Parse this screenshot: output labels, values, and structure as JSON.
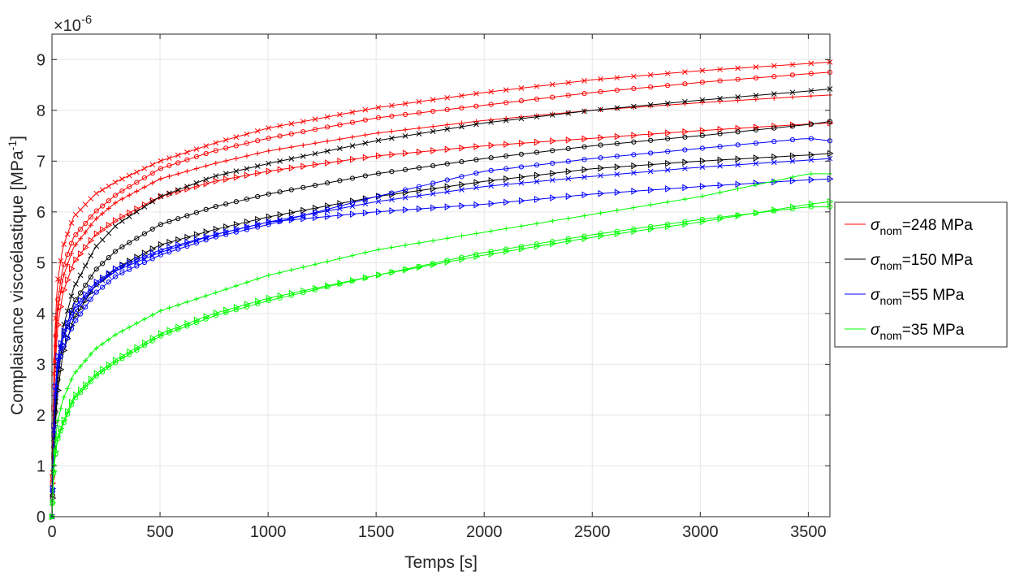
{
  "chart_data": {
    "type": "line",
    "title": "",
    "xlabel": "Temps [s]",
    "ylabel": "Complaisance viscoélastique [MPa",
    "ylabel_exponent": "-1",
    "ylabel_suffix": "]",
    "y_exponent_label": "×10",
    "y_exponent_power": "-6",
    "xlim": [
      0,
      3600
    ],
    "ylim": [
      0,
      9.5
    ],
    "x_ticks": [
      0,
      500,
      1000,
      1500,
      2000,
      2500,
      3000,
      3500
    ],
    "x_tick_labels": [
      "0",
      "500",
      "1000",
      "1500",
      "2000",
      "2500",
      "3000",
      "3500"
    ],
    "y_ticks": [
      0,
      1,
      2,
      3,
      4,
      5,
      6,
      7,
      8,
      9
    ],
    "y_tick_labels": [
      "0",
      "1",
      "2",
      "3",
      "4",
      "5",
      "6",
      "7",
      "8",
      "9"
    ],
    "grid": true,
    "legend_position": "outside-right",
    "legend": [
      {
        "symbol": "σ",
        "subscript": "nom",
        "suffix": "=248 MPa",
        "color": "#ff0000"
      },
      {
        "symbol": "σ",
        "subscript": "nom",
        "suffix": "=150 MPa",
        "color": "#000000"
      },
      {
        "symbol": "σ",
        "subscript": "nom",
        "suffix": "=55 MPa",
        "color": "#0000ff"
      },
      {
        "symbol": "σ",
        "subscript": "nom",
        "suffix": "=35 MPa",
        "color": "#00ff00"
      }
    ],
    "x": [
      0,
      10,
      25,
      50,
      100,
      200,
      300,
      500,
      750,
      1000,
      1500,
      2000,
      2500,
      3000,
      3500,
      3600
    ],
    "series": [
      {
        "group": "248 MPa",
        "color": "#ff0000",
        "marker": "x",
        "values": [
          0,
          3.3,
          4.6,
          5.3,
          5.9,
          6.35,
          6.6,
          7.0,
          7.35,
          7.65,
          8.05,
          8.35,
          8.6,
          8.78,
          8.92,
          8.95
        ]
      },
      {
        "group": "248 MPa",
        "color": "#ff0000",
        "marker": "o",
        "values": [
          0,
          3.0,
          4.2,
          4.9,
          5.5,
          6.0,
          6.35,
          6.85,
          7.2,
          7.45,
          7.85,
          8.1,
          8.35,
          8.55,
          8.72,
          8.75
        ]
      },
      {
        "group": "248 MPa",
        "color": "#ff0000",
        "marker": "+",
        "values": [
          0,
          2.8,
          4.0,
          4.7,
          5.3,
          5.85,
          6.2,
          6.65,
          6.95,
          7.2,
          7.55,
          7.8,
          8.0,
          8.15,
          8.28,
          8.3
        ]
      },
      {
        "group": "248 MPa",
        "color": "#ff0000",
        "marker": "tri",
        "values": [
          0,
          2.5,
          3.7,
          4.4,
          5.0,
          5.55,
          5.85,
          6.3,
          6.6,
          6.8,
          7.1,
          7.3,
          7.45,
          7.6,
          7.73,
          7.75
        ]
      },
      {
        "group": "150 MPa",
        "color": "#000000",
        "marker": "x",
        "values": [
          0,
          1.8,
          2.8,
          3.7,
          4.5,
          5.3,
          5.75,
          6.3,
          6.7,
          6.95,
          7.4,
          7.75,
          8.0,
          8.2,
          8.38,
          8.42
        ]
      },
      {
        "group": "150 MPa",
        "color": "#000000",
        "marker": "o",
        "values": [
          0,
          1.6,
          2.6,
          3.5,
          4.2,
          4.85,
          5.25,
          5.75,
          6.1,
          6.35,
          6.75,
          7.05,
          7.3,
          7.5,
          7.72,
          7.78
        ]
      },
      {
        "group": "150 MPa",
        "color": "#000000",
        "marker": "tri",
        "values": [
          0,
          1.4,
          2.4,
          3.2,
          3.9,
          4.55,
          4.9,
          5.35,
          5.65,
          5.9,
          6.3,
          6.6,
          6.85,
          7.0,
          7.12,
          7.15
        ]
      },
      {
        "group": "55 MPa",
        "color": "#0000ff",
        "marker": "o",
        "values": [
          0,
          1.9,
          2.9,
          3.3,
          3.8,
          4.4,
          4.75,
          5.15,
          5.5,
          5.75,
          6.3,
          6.8,
          7.05,
          7.25,
          7.45,
          7.4
        ]
      },
      {
        "group": "55 MPa",
        "color": "#0000ff",
        "marker": "x",
        "values": [
          0,
          2.0,
          3.0,
          3.5,
          4.0,
          4.55,
          4.85,
          5.2,
          5.55,
          5.8,
          6.2,
          6.5,
          6.7,
          6.88,
          7.02,
          7.05
        ]
      },
      {
        "group": "55 MPa",
        "color": "#0000ff",
        "marker": "tri",
        "values": [
          0,
          2.1,
          3.1,
          3.6,
          4.1,
          4.6,
          4.9,
          5.25,
          5.55,
          5.8,
          6.0,
          6.15,
          6.35,
          6.5,
          6.63,
          6.65
        ]
      },
      {
        "group": "35 MPa",
        "color": "#00ff00",
        "marker": "+",
        "values": [
          0,
          1.2,
          1.85,
          2.3,
          2.8,
          3.3,
          3.6,
          4.05,
          4.4,
          4.75,
          5.25,
          5.6,
          5.95,
          6.3,
          6.75,
          6.75
        ]
      },
      {
        "group": "35 MPa",
        "color": "#00ff00",
        "marker": "o",
        "values": [
          0,
          1.0,
          1.5,
          1.8,
          2.3,
          2.75,
          3.05,
          3.55,
          3.95,
          4.25,
          4.75,
          5.2,
          5.55,
          5.85,
          6.1,
          6.1
        ]
      },
      {
        "group": "35 MPa",
        "color": "#00ff00",
        "marker": "tri",
        "values": [
          0,
          1.05,
          1.55,
          1.85,
          2.35,
          2.8,
          3.1,
          3.6,
          4.0,
          4.3,
          4.75,
          5.15,
          5.5,
          5.8,
          6.15,
          6.2
        ]
      }
    ]
  }
}
